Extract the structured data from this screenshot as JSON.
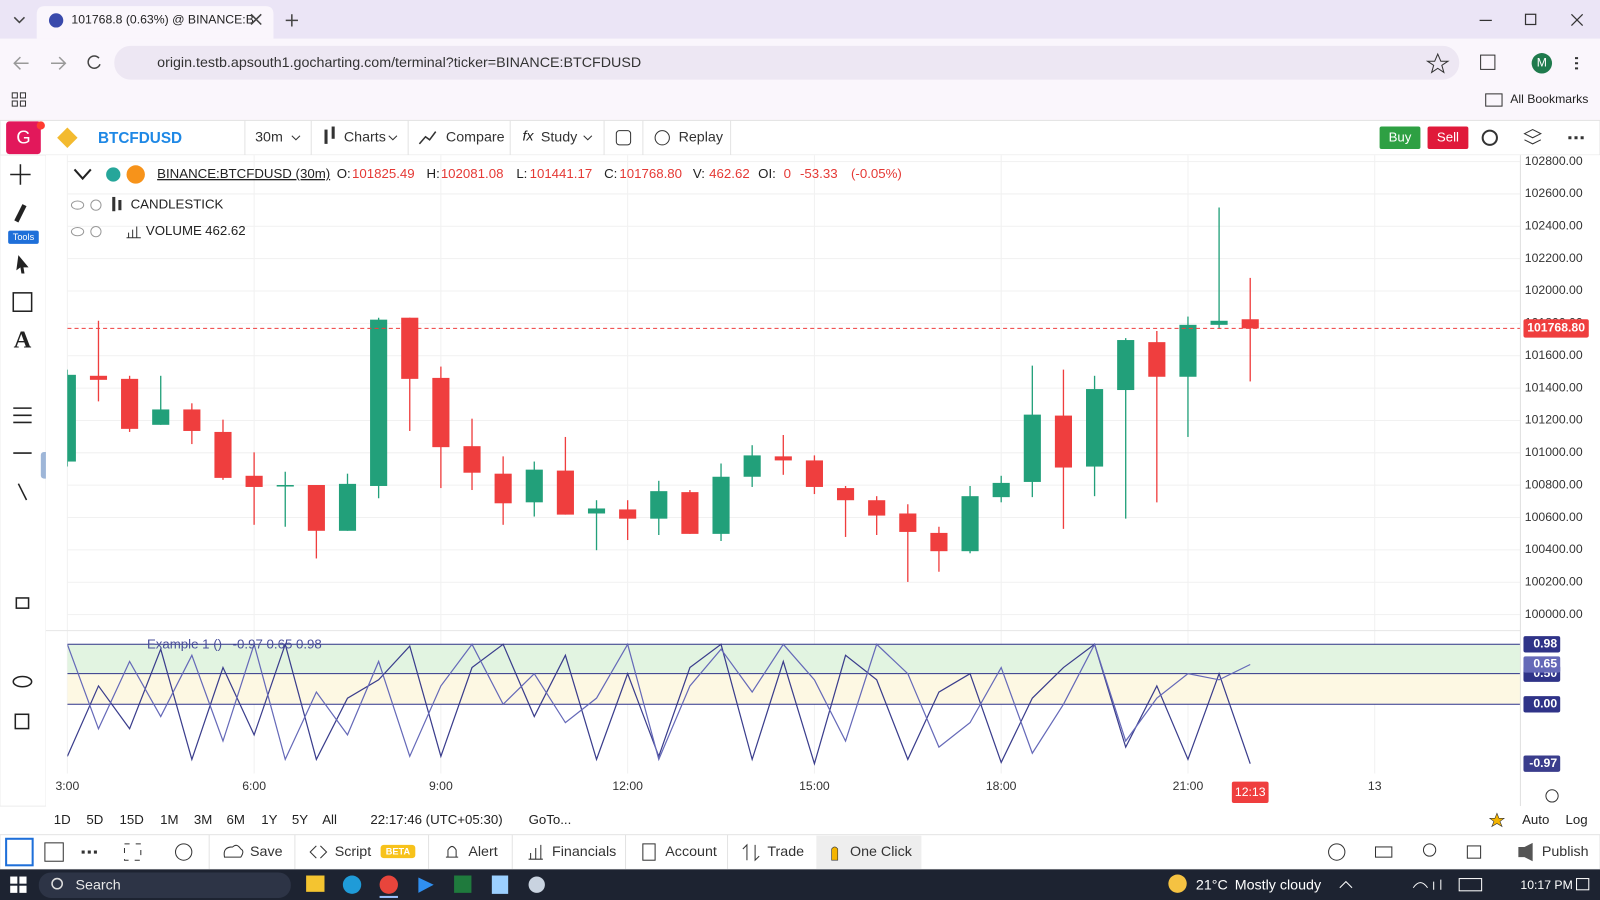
{
  "browser": {
    "tab_title": "101768.8 (0.63%) @ BINANCE:B",
    "url": "origin.testb.apsouth1.gocharting.com/terminal?ticker=BINANCE:BTCFDUSD",
    "profile": "M",
    "bookmarks": "All Bookmarks"
  },
  "toolbar": {
    "logo": "G",
    "symbol": "BTCFDUSD",
    "interval": "30m",
    "charts": "Charts",
    "compare": "Compare",
    "study": "Study",
    "replay": "Replay",
    "buy": "Buy",
    "sell": "Sell"
  },
  "sidebar": {
    "tools": "Tools"
  },
  "legend": {
    "symbol": "BINANCE:BTCFDUSD (30m)",
    "fields": [
      {
        "label": "O:",
        "value": "101825.49"
      },
      {
        "label": "H:",
        "value": "102081.08"
      },
      {
        "label": "L:",
        "value": "101441.17"
      },
      {
        "label": "C:",
        "value": "101768.80"
      },
      {
        "label": "V:",
        "value": "462.62"
      },
      {
        "label": "OI:",
        "value": "0"
      }
    ],
    "change": "-53.33",
    "change_pct": "(-0.05%)",
    "candlestick": "CANDLESTICK",
    "volume": "VOLUME",
    "volume_value": "462.62"
  },
  "chart_data": [
    {
      "type": "candlestick",
      "x": [
        3,
        3.5,
        4,
        4.5,
        5,
        5.5,
        6,
        6.5,
        7,
        7.5,
        8,
        8.5,
        9,
        9.5,
        10,
        10.5,
        11,
        11.5,
        12,
        12.5,
        13,
        13.5,
        14,
        14.5,
        15,
        15.5,
        16,
        16.5,
        17,
        17.5,
        18,
        18.5,
        19,
        19.5,
        20,
        20.5,
        21,
        21.5,
        22
      ],
      "open": [
        100946,
        101476,
        101457,
        101173,
        101268,
        101129,
        100858,
        100795,
        100801,
        100518,
        100795,
        101835,
        101463,
        101041,
        100871,
        100694,
        100890,
        100625,
        100650,
        100593,
        100757,
        100499,
        100852,
        100978,
        100953,
        100782,
        100707,
        100625,
        100505,
        100392,
        100726,
        100820,
        101230,
        100915,
        101388,
        101684,
        101470,
        101791,
        101825.49
      ],
      "high": [
        101514,
        101816,
        101476,
        101476,
        101306,
        101205,
        101003,
        100883,
        100801,
        100871,
        101835,
        101835,
        101533,
        101211,
        100978,
        100946,
        101098,
        100707,
        100707,
        100827,
        100770,
        100934,
        101047,
        101110,
        100984,
        100795,
        100732,
        100682,
        100543,
        100795,
        100858,
        101539,
        101514,
        101476,
        101709,
        101753,
        101842,
        102516,
        102081.08
      ],
      "low": [
        100915,
        101318,
        101129,
        101173,
        101054,
        100833,
        100555,
        100543,
        100347,
        100518,
        100719,
        101135,
        100782,
        100770,
        100555,
        100606,
        100618,
        100398,
        100461,
        100492,
        100499,
        100455,
        100789,
        100864,
        100745,
        100480,
        100492,
        100202,
        100265,
        100379,
        100694,
        100726,
        100530,
        100732,
        100593,
        100694,
        101098,
        101766,
        101441.17
      ],
      "close": [
        101482,
        101451,
        101148,
        101268,
        101135,
        100845,
        100789,
        100801,
        100518,
        100808,
        101823,
        101457,
        101035,
        100877,
        100688,
        100896,
        100618,
        100656,
        100593,
        100763,
        100499,
        100852,
        100984,
        100953,
        100789,
        100707,
        100612,
        100511,
        100392,
        100732,
        100814,
        101236,
        100909,
        101394,
        101697,
        101470,
        101791,
        101816,
        101768.8
      ],
      "xlim": [
        3,
        26.34
      ],
      "ylim": [
        99920,
        102840
      ],
      "xticks": [
        {
          "value": 3,
          "label": "3:00"
        },
        {
          "value": 6,
          "label": "6:00"
        },
        {
          "value": 9,
          "label": "9:00"
        },
        {
          "value": 12,
          "label": "12:00"
        },
        {
          "value": 15,
          "label": "15:00"
        },
        {
          "value": 18,
          "label": "18:00"
        },
        {
          "value": 21,
          "label": "21:00"
        },
        {
          "value": 24,
          "label": "13"
        }
      ],
      "yticks": [
        {
          "value": 100000,
          "label": "100000.00"
        },
        {
          "value": 100200,
          "label": "100200.00"
        },
        {
          "value": 100400,
          "label": "100400.00"
        },
        {
          "value": 100600,
          "label": "100600.00"
        },
        {
          "value": 100800,
          "label": "100800.00"
        },
        {
          "value": 101000,
          "label": "101000.00"
        },
        {
          "value": 101200,
          "label": "101200.00"
        },
        {
          "value": 101400,
          "label": "101400.00"
        },
        {
          "value": 101600,
          "label": "101600.00"
        },
        {
          "value": 101800,
          "label": "101800.00"
        },
        {
          "value": 102000,
          "label": "102000.00"
        },
        {
          "value": 102200,
          "label": "102200.00"
        },
        {
          "value": 102400,
          "label": "102400.00"
        },
        {
          "value": 102600,
          "label": "102600.00"
        },
        {
          "value": 102800,
          "label": "102800.00"
        }
      ],
      "up_color": "#22a07a",
      "down_color": "#ef3e3e",
      "grid": true,
      "last_price": {
        "value": 101768.8,
        "label": "101768.80"
      },
      "last_time_label": "12:13"
    },
    {
      "type": "line",
      "title": "Example 1 ()",
      "legend_values": "-0.97 0.65 0.98",
      "ylim": [
        -1.13,
        1.17
      ],
      "yticks": [
        {
          "value": 0.98,
          "label": "0.98"
        },
        {
          "value": 0.5,
          "label": "0.50"
        },
        {
          "value": 0,
          "label": "0.00"
        }
      ],
      "band_colors": [
        "#e2f4e1",
        "#fdf8e3"
      ],
      "level_color": "#2f3388",
      "series": [
        {
          "color": "#3a3d8c",
          "last_label": "-0.97",
          "values": [
            -0.85,
            0.3,
            -0.4,
            0.9,
            -0.9,
            0.6,
            -0.5,
            0.98,
            -0.9,
            0.1,
            0.4,
            0.95,
            -0.85,
            0.6,
            0.98,
            -0.2,
            0.8,
            -0.9,
            0.5,
            -0.85,
            0.6,
            0.98,
            -0.9,
            0.7,
            -0.97,
            0.8,
            0.4,
            -0.9,
            0.2,
            0.5,
            -0.95,
            0.1,
            0.6,
            0.98,
            -0.7,
            0.3,
            -0.9,
            0.5,
            -0.97
          ]
        },
        {
          "color": "#6569b8",
          "last_label": "0.65",
          "values": [
            0.98,
            -0.4,
            0.7,
            -0.2,
            0.8,
            -0.6,
            0.98,
            -0.9,
            0.2,
            -0.5,
            0.7,
            -0.85,
            0.3,
            0.98,
            0.0,
            0.5,
            -0.3,
            0.1,
            0.98,
            -0.9,
            0.3,
            0.9,
            0.2,
            0.98,
            0.4,
            -0.6,
            0.98,
            0.5,
            -0.7,
            -0.3,
            0.6,
            -0.8,
            0.0,
            0.98,
            -0.6,
            0.1,
            0.5,
            0.4,
            0.65
          ]
        }
      ]
    }
  ],
  "bottom_bar": {
    "ranges": [
      "1D",
      "5D",
      "15D",
      "1M",
      "3M",
      "6M",
      "1Y",
      "5Y",
      "All"
    ],
    "clock": "22:17:46 (UTC+05:30)",
    "goto": "GoTo...",
    "auto": "Auto",
    "log": "Log"
  },
  "footer": {
    "save": "Save",
    "script": "Script",
    "beta": "BETA",
    "alert": "Alert",
    "financials": "Financials",
    "account": "Account",
    "trade": "Trade",
    "one_click": "One Click",
    "publish": "Publish"
  },
  "taskbar": {
    "search": "Search",
    "weather": "21°C",
    "weather_desc": "Mostly cloudy",
    "time": "10:17 PM"
  }
}
